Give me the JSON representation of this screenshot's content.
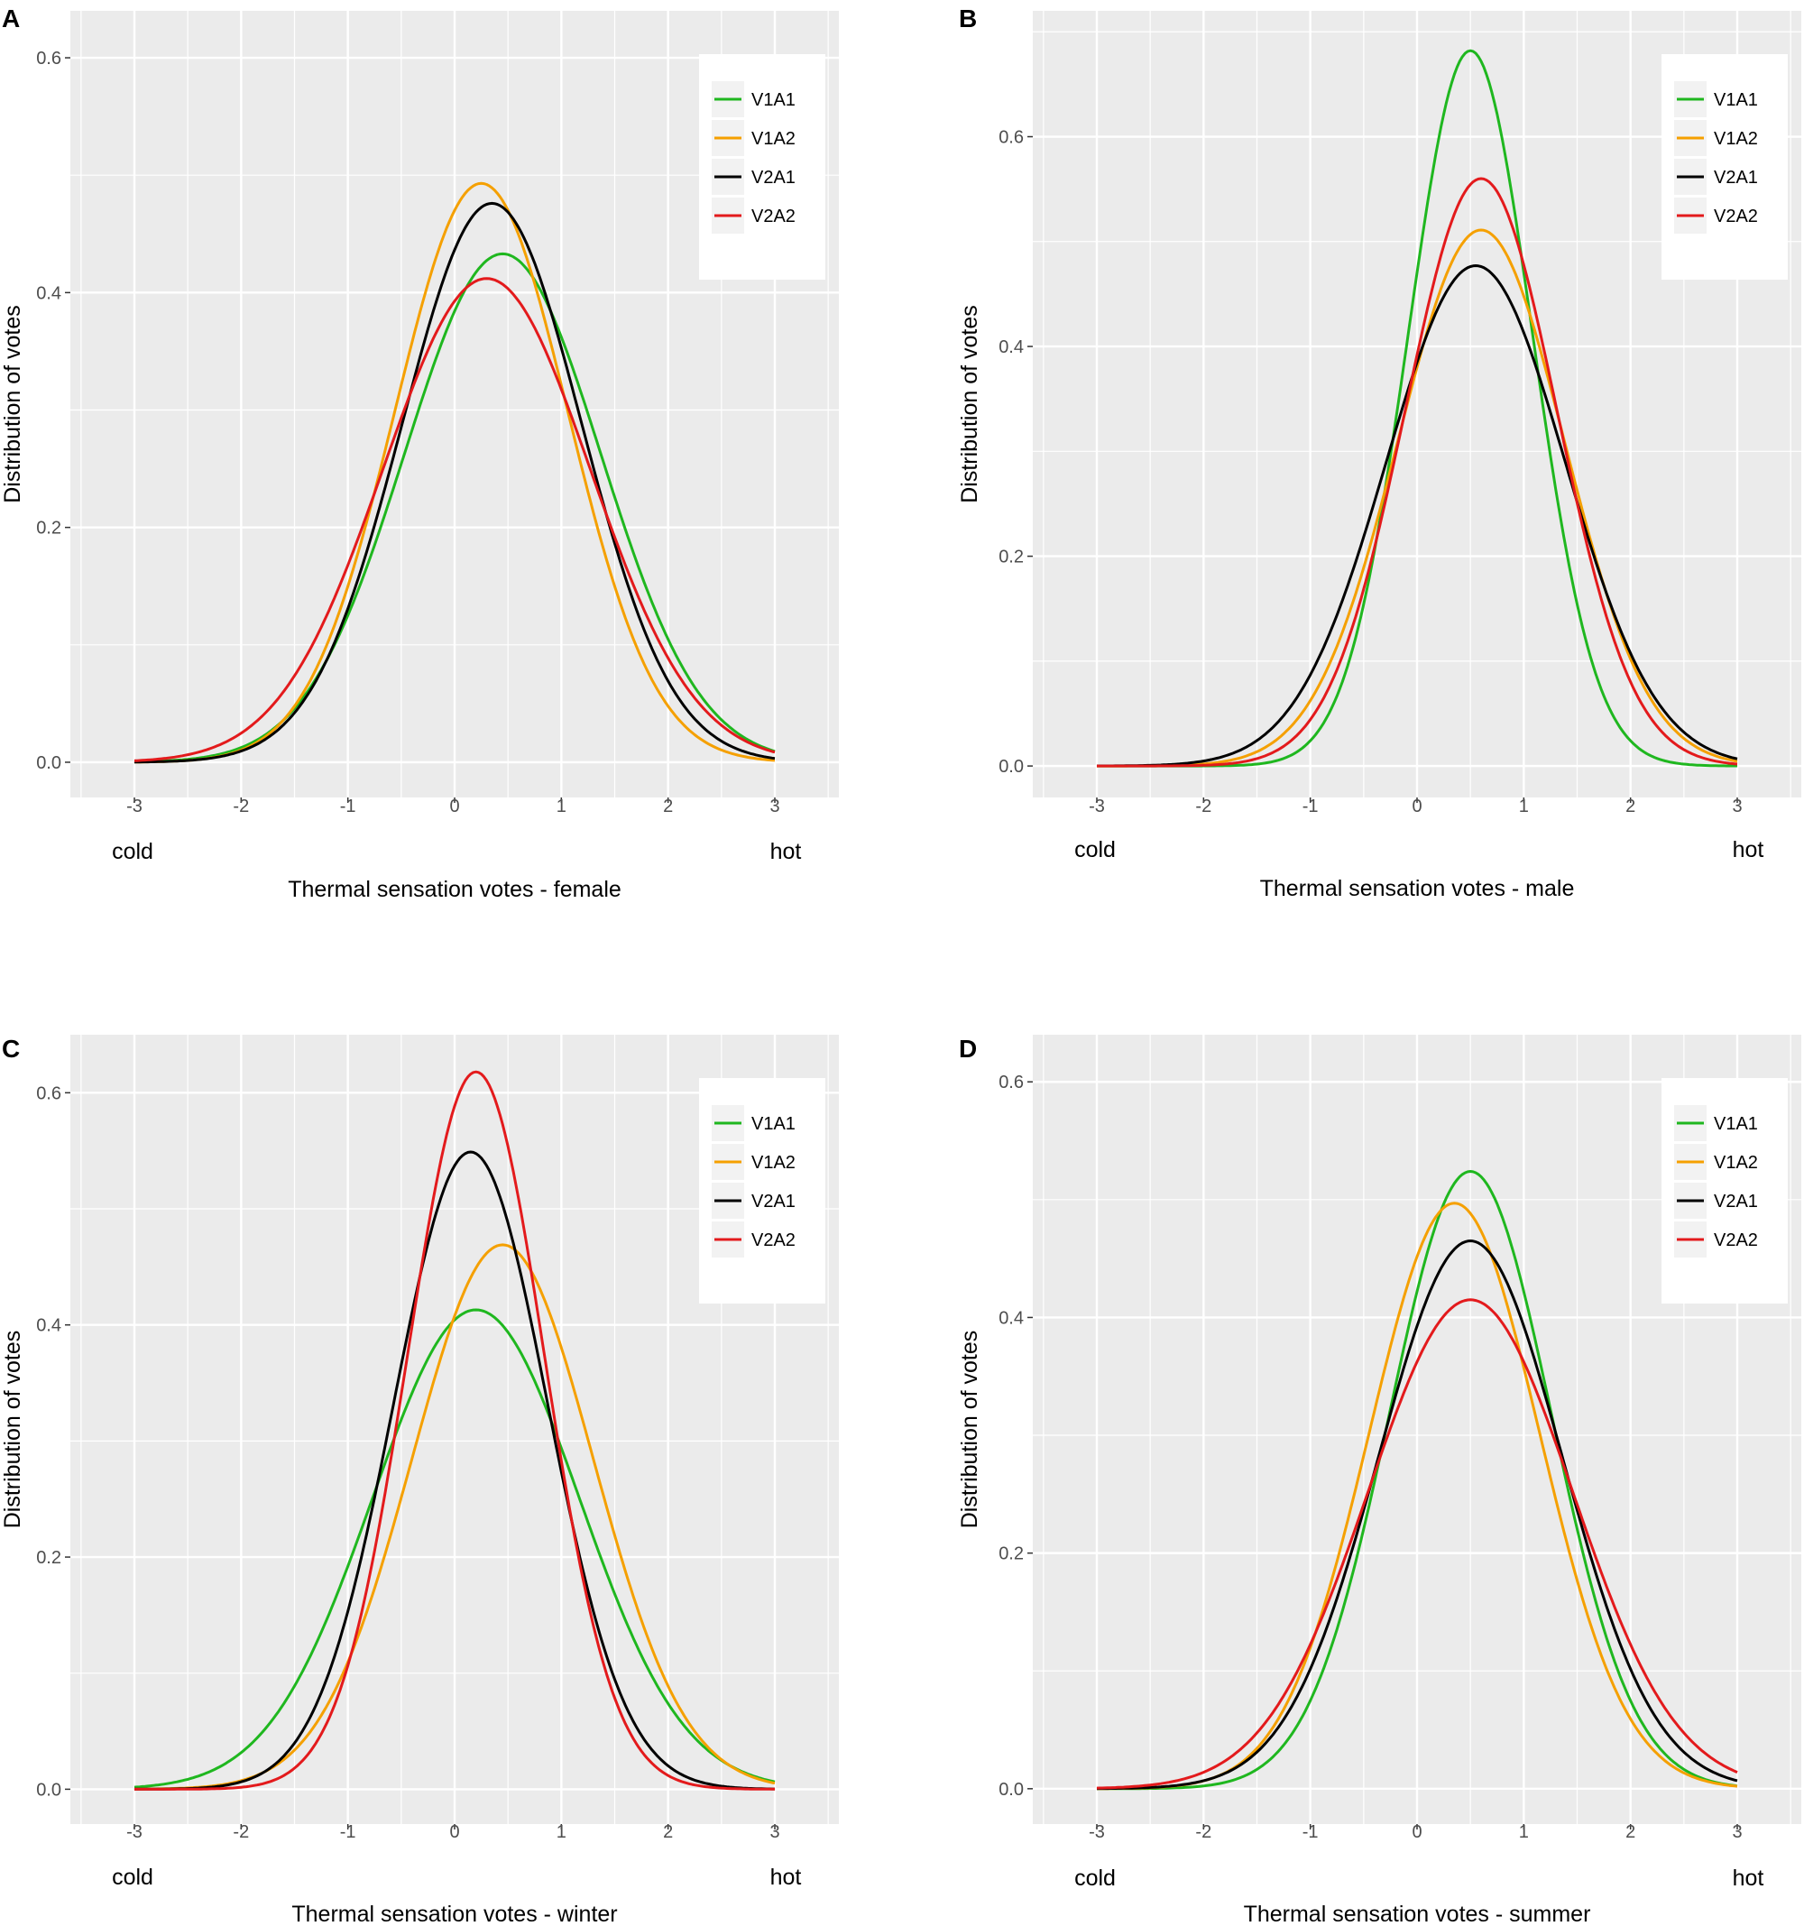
{
  "chart_data": [
    {
      "type": "line",
      "panel": "A",
      "title": "",
      "xlabel": "Thermal sensation votes - female",
      "ylabel": "Distribution of votes",
      "x_ticks": [
        "-3",
        "-2",
        "-1",
        "0",
        "1",
        "2",
        "3"
      ],
      "y_ticks": [
        "0.0",
        "0.2",
        "0.4",
        "0.6"
      ],
      "x_end_labels": {
        "left": "cold",
        "right": "hot"
      },
      "xlim": [
        -3.6,
        3.6
      ],
      "ylim": [
        -0.03,
        0.64
      ],
      "legend_position": "top-right",
      "series": [
        {
          "name": "V1A1",
          "color": "#1fb71f",
          "peak_x": 0.45,
          "peak_y": 0.433,
          "sd": 0.92
        },
        {
          "name": "V1A2",
          "color": "#f5a000",
          "peak_x": 0.25,
          "peak_y": 0.493,
          "sd": 0.81
        },
        {
          "name": "V2A1",
          "color": "#000000",
          "peak_x": 0.35,
          "peak_y": 0.476,
          "sd": 0.84
        },
        {
          "name": "V2A2",
          "color": "#e31a1c",
          "peak_x": 0.3,
          "peak_y": 0.412,
          "sd": 0.97
        }
      ]
    },
    {
      "type": "line",
      "panel": "B",
      "title": "",
      "xlabel": "Thermal sensation votes - male",
      "ylabel": "Distribution of votes",
      "x_ticks": [
        "-3",
        "-2",
        "-1",
        "0",
        "1",
        "2",
        "3"
      ],
      "y_ticks": [
        "0.0",
        "0.2",
        "0.4",
        "0.6"
      ],
      "x_end_labels": {
        "left": "cold",
        "right": "hot"
      },
      "xlim": [
        -3.6,
        3.6
      ],
      "ylim": [
        -0.03,
        0.72
      ],
      "legend_position": "top-right",
      "series": [
        {
          "name": "V1A1",
          "color": "#1fb71f",
          "peak_x": 0.5,
          "peak_y": 0.682,
          "sd": 0.58
        },
        {
          "name": "V1A2",
          "color": "#f5a000",
          "peak_x": 0.6,
          "peak_y": 0.511,
          "sd": 0.78
        },
        {
          "name": "V2A1",
          "color": "#000000",
          "peak_x": 0.55,
          "peak_y": 0.477,
          "sd": 0.84
        },
        {
          "name": "V2A2",
          "color": "#e31a1c",
          "peak_x": 0.6,
          "peak_y": 0.56,
          "sd": 0.71
        }
      ]
    },
    {
      "type": "line",
      "panel": "C",
      "title": "",
      "xlabel": "Thermal sensation votes - winter",
      "ylabel": "Distribution of votes",
      "x_ticks": [
        "-3",
        "-2",
        "-1",
        "0",
        "1",
        "2",
        "3"
      ],
      "y_ticks": [
        "0.0",
        "0.2",
        "0.4",
        "0.6"
      ],
      "x_end_labels": {
        "left": "cold",
        "right": "hot"
      },
      "xlim": [
        -3.6,
        3.6
      ],
      "ylim": [
        -0.03,
        0.65
      ],
      "legend_position": "top-right",
      "series": [
        {
          "name": "V1A1",
          "color": "#1fb71f",
          "peak_x": 0.2,
          "peak_y": 0.413,
          "sd": 0.97
        },
        {
          "name": "V1A2",
          "color": "#f5a000",
          "peak_x": 0.45,
          "peak_y": 0.469,
          "sd": 0.85
        },
        {
          "name": "V2A1",
          "color": "#000000",
          "peak_x": 0.15,
          "peak_y": 0.549,
          "sd": 0.72
        },
        {
          "name": "V2A2",
          "color": "#e31a1c",
          "peak_x": 0.2,
          "peak_y": 0.618,
          "sd": 0.64
        }
      ]
    },
    {
      "type": "line",
      "panel": "D",
      "title": "",
      "xlabel": "Thermal sensation votes - summer",
      "ylabel": "Distribution of votes",
      "x_ticks": [
        "-3",
        "-2",
        "-1",
        "0",
        "1",
        "2",
        "3"
      ],
      "y_ticks": [
        "0.0",
        "0.2",
        "0.4",
        "0.6"
      ],
      "x_end_labels": {
        "left": "cold",
        "right": "hot"
      },
      "xlim": [
        -3.6,
        3.6
      ],
      "ylim": [
        -0.03,
        0.64
      ],
      "legend_position": "top-right",
      "series": [
        {
          "name": "V1A1",
          "color": "#1fb71f",
          "peak_x": 0.5,
          "peak_y": 0.524,
          "sd": 0.76
        },
        {
          "name": "V1A2",
          "color": "#f5a000",
          "peak_x": 0.35,
          "peak_y": 0.497,
          "sd": 0.8
        },
        {
          "name": "V2A1",
          "color": "#000000",
          "peak_x": 0.5,
          "peak_y": 0.465,
          "sd": 0.86
        },
        {
          "name": "V2A2",
          "color": "#e31a1c",
          "peak_x": 0.5,
          "peak_y": 0.415,
          "sd": 0.96
        }
      ]
    }
  ],
  "colors": {
    "panel_background": "#ebebeb",
    "grid": "#ffffff",
    "tick_text": "#4d4d4d",
    "legend_key_background": "#f2f2f2"
  }
}
